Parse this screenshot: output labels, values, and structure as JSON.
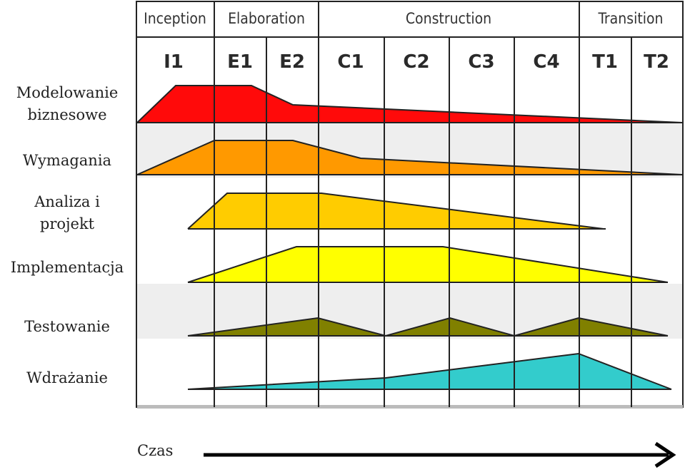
{
  "phases": [
    {
      "label": "Inception"
    },
    {
      "label": "Elaboration"
    },
    {
      "label": "Construction"
    },
    {
      "label": "Transition"
    }
  ],
  "iterations": [
    "I1",
    "E1",
    "E2",
    "C1",
    "C2",
    "C3",
    "C4",
    "T1",
    "T2"
  ],
  "disciplines": [
    {
      "key": "business",
      "line1": "Modelowanie",
      "line2": "biznesowe",
      "color": "#ff0a0a"
    },
    {
      "key": "requirements",
      "line1": "Wymagania",
      "line2": "",
      "color": "#ff9900"
    },
    {
      "key": "analysis",
      "line1": "Analiza i",
      "line2": "projekt",
      "color": "#ffcc00"
    },
    {
      "key": "implementation",
      "line1": "Implementacja",
      "line2": "",
      "color": "#ffff00"
    },
    {
      "key": "test",
      "line1": "Testowanie",
      "line2": "",
      "color": "#808000"
    },
    {
      "key": "deployment",
      "line1": "Wdrażanie",
      "line2": "",
      "color": "#33cccc"
    }
  ],
  "time_axis": {
    "label": "Czas"
  }
}
